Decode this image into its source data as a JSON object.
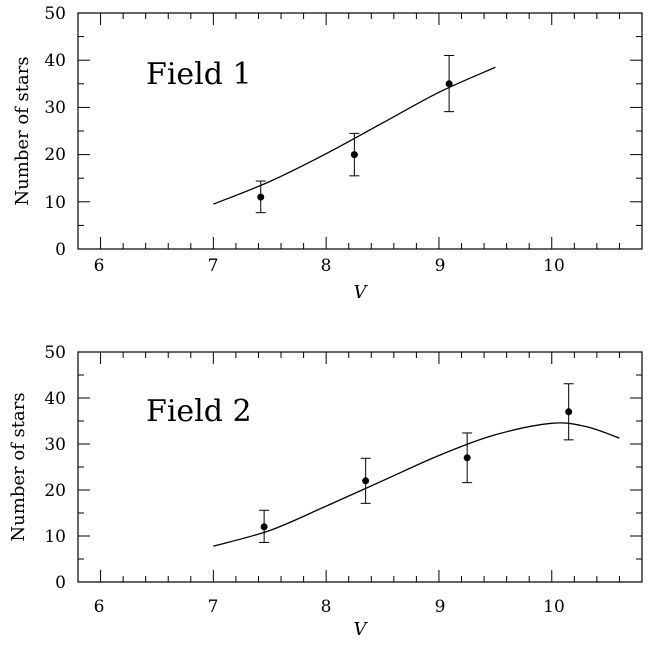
{
  "chart_data": [
    {
      "type": "scatter",
      "title": "",
      "annotation": "Field  1",
      "xlabel": "V",
      "ylabel": "Number of stars",
      "xlim": [
        5.8,
        10.8
      ],
      "ylim": [
        0,
        50
      ],
      "x_ticks": [
        "6",
        "7",
        "8",
        "9",
        "10"
      ],
      "y_ticks": [
        "0",
        "10",
        "20",
        "30",
        "40",
        "50"
      ],
      "grid": false,
      "legend": "none",
      "series": [
        {
          "kind": "points_with_errorbars",
          "points": [
            {
              "x": 7.42,
              "y": 11,
              "err_low": 7.7,
              "err_high": 14.4
            },
            {
              "x": 8.25,
              "y": 20,
              "err_low": 15.5,
              "err_high": 24.5
            },
            {
              "x": 9.09,
              "y": 35,
              "err_low": 29.1,
              "err_high": 41.0
            }
          ]
        },
        {
          "kind": "model_curve",
          "x": [
            7.0,
            7.5,
            8.0,
            8.5,
            9.0,
            9.5
          ],
          "y": [
            9.5,
            14.3,
            20.2,
            26.7,
            33.2,
            38.5
          ]
        }
      ]
    },
    {
      "type": "scatter",
      "title": "",
      "annotation": "Field  2",
      "xlabel": "V",
      "ylabel": "Number of stars",
      "xlim": [
        5.8,
        10.8
      ],
      "ylim": [
        0,
        50
      ],
      "x_ticks": [
        "6",
        "7",
        "8",
        "9",
        "10"
      ],
      "y_ticks": [
        "0",
        "10",
        "20",
        "30",
        "40",
        "50"
      ],
      "grid": false,
      "legend": "none",
      "series": [
        {
          "kind": "points_with_errorbars",
          "points": [
            {
              "x": 7.45,
              "y": 12,
              "err_low": 8.6,
              "err_high": 15.6
            },
            {
              "x": 8.35,
              "y": 22,
              "err_low": 17.1,
              "err_high": 26.9
            },
            {
              "x": 9.25,
              "y": 27,
              "err_low": 21.6,
              "err_high": 32.4
            },
            {
              "x": 10.15,
              "y": 37,
              "err_low": 30.9,
              "err_high": 43.1
            }
          ]
        },
        {
          "kind": "model_curve",
          "x": [
            7.0,
            7.5,
            8.0,
            8.5,
            9.0,
            9.5,
            10.0,
            10.3,
            10.6
          ],
          "y": [
            7.8,
            11.2,
            16.5,
            22.0,
            27.5,
            32.0,
            34.5,
            33.8,
            31.3
          ]
        }
      ]
    }
  ]
}
